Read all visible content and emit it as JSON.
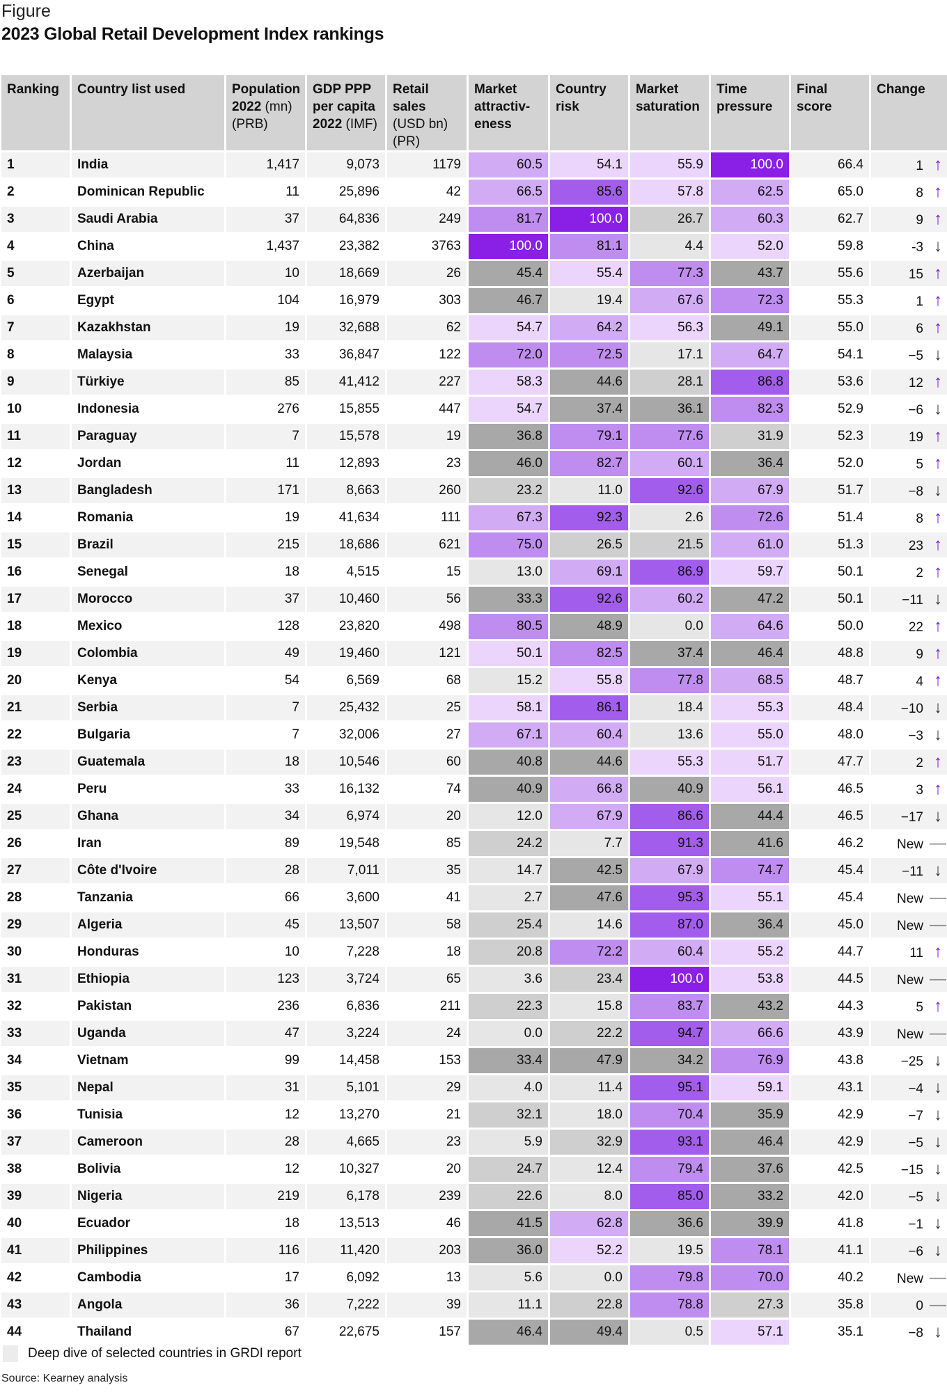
{
  "figure_label": "Figure",
  "title": "2023 Global Retail Development Index rankings",
  "headers": {
    "ranking": "Ranking",
    "country": "Country list used",
    "pop_b": "Population 2022",
    "pop_n": " (mn) (PRB)",
    "gdp_b": "GDP PPP per capita 2022",
    "gdp_n": " (IMF)",
    "retail_b": "Retail sales",
    "retail_n": " (USD bn) (PR)",
    "ma": "Market attractiv-eness",
    "cr": "Country risk",
    "ms": "Market saturation",
    "tp": "Time pressure",
    "final": "Final score",
    "change": "Change"
  },
  "colors": {
    "accent": "#7e14df"
  },
  "rows": [
    [
      "1",
      "India",
      "1,417",
      "9,073",
      "1179",
      "60.5",
      "54.1",
      "55.9",
      "100.0",
      "66.4",
      "1",
      "up"
    ],
    [
      "2",
      "Dominican Republic",
      "11",
      "25,896",
      "42",
      "66.5",
      "85.6",
      "57.8",
      "62.5",
      "65.0",
      "8",
      "up"
    ],
    [
      "3",
      "Saudi Arabia",
      "37",
      "64,836",
      "249",
      "81.7",
      "100.0",
      "26.7",
      "60.3",
      "62.7",
      "9",
      "up"
    ],
    [
      "4",
      "China",
      "1,437",
      "23,382",
      "3763",
      "100.0",
      "81.1",
      "4.4",
      "52.0",
      "59.8",
      "-3",
      "down"
    ],
    [
      "5",
      "Azerbaijan",
      "10",
      "18,669",
      "26",
      "45.4",
      "55.4",
      "77.3",
      "43.7",
      "55.6",
      "15",
      "up"
    ],
    [
      "6",
      "Egypt",
      "104",
      "16,979",
      "303",
      "46.7",
      "19.4",
      "67.6",
      "72.3",
      "55.3",
      "1",
      "up"
    ],
    [
      "7",
      "Kazakhstan",
      "19",
      "32,688",
      "62",
      "54.7",
      "64.2",
      "56.3",
      "49.1",
      "55.0",
      "6",
      "up"
    ],
    [
      "8",
      "Malaysia",
      "33",
      "36,847",
      "122",
      "72.0",
      "72.5",
      "17.1",
      "64.7",
      "54.1",
      "−5",
      "down"
    ],
    [
      "9",
      "Türkiye",
      "85",
      "41,412",
      "227",
      "58.3",
      "44.6",
      "28.1",
      "86.8",
      "53.6",
      "12",
      "up"
    ],
    [
      "10",
      "Indonesia",
      "276",
      "15,855",
      "447",
      "54.7",
      "37.4",
      "36.1",
      "82.3",
      "52.9",
      "−6",
      "down"
    ],
    [
      "11",
      "Paraguay",
      "7",
      "15,578",
      "19",
      "36.8",
      "79.1",
      "77.6",
      "31.9",
      "52.3",
      "19",
      "up"
    ],
    [
      "12",
      "Jordan",
      "11",
      "12,893",
      "23",
      "46.0",
      "82.7",
      "60.1",
      "36.4",
      "52.0",
      "5",
      "up"
    ],
    [
      "13",
      "Bangladesh",
      "171",
      "8,663",
      "260",
      "23.2",
      "11.0",
      "92.6",
      "67.9",
      "51.7",
      "−8",
      "down"
    ],
    [
      "14",
      "Romania",
      "19",
      "41,634",
      "111",
      "67.3",
      "92.3",
      "2.6",
      "72.6",
      "51.4",
      "8",
      "up"
    ],
    [
      "15",
      "Brazil",
      "215",
      "18,686",
      "621",
      "75.0",
      "26.5",
      "21.5",
      "61.0",
      "51.3",
      "23",
      "up"
    ],
    [
      "16",
      "Senegal",
      "18",
      "4,515",
      "15",
      "13.0",
      "69.1",
      "86.9",
      "59.7",
      "50.1",
      "2",
      "up"
    ],
    [
      "17",
      "Morocco",
      "37",
      "10,460",
      "56",
      "33.3",
      "92.6",
      "60.2",
      "47.2",
      "50.1",
      "−11",
      "down"
    ],
    [
      "18",
      "Mexico",
      "128",
      "23,820",
      "498",
      "80.5",
      "48.9",
      "0.0",
      "64.6",
      "50.0",
      "22",
      "up"
    ],
    [
      "19",
      "Colombia",
      "49",
      "19,460",
      "121",
      "50.1",
      "82.5",
      "37.4",
      "46.4",
      "48.8",
      "9",
      "up"
    ],
    [
      "20",
      "Kenya",
      "54",
      "6,569",
      "68",
      "15.2",
      "55.8",
      "77.8",
      "68.5",
      "48.7",
      "4",
      "up"
    ],
    [
      "21",
      "Serbia",
      "7",
      "25,432",
      "25",
      "58.1",
      "86.1",
      "18.4",
      "55.3",
      "48.4",
      "−10",
      "down"
    ],
    [
      "22",
      "Bulgaria",
      "7",
      "32,006",
      "27",
      "67.1",
      "60.4",
      "13.6",
      "55.0",
      "48.0",
      "−3",
      "down"
    ],
    [
      "23",
      "Guatemala",
      "18",
      "10,546",
      "60",
      "40.8",
      "44.6",
      "55.3",
      "51.7",
      "47.7",
      "2",
      "up"
    ],
    [
      "24",
      "Peru",
      "33",
      "16,132",
      "74",
      "40.9",
      "66.8",
      "40.9",
      "56.1",
      "46.5",
      "3",
      "up"
    ],
    [
      "25",
      "Ghana",
      "34",
      "6,974",
      "20",
      "12.0",
      "67.9",
      "86.6",
      "44.4",
      "46.5",
      "−17",
      "down"
    ],
    [
      "26",
      "Iran",
      "89",
      "19,548",
      "85",
      "24.2",
      "7.7",
      "91.3",
      "41.6",
      "46.2",
      "New",
      "flat"
    ],
    [
      "27",
      "Côte d'Ivoire",
      "28",
      "7,011",
      "35",
      "14.7",
      "42.5",
      "67.9",
      "74.7",
      "45.4",
      "−11",
      "down"
    ],
    [
      "28",
      "Tanzania",
      "66",
      "3,600",
      "41",
      "2.7",
      "47.6",
      "95.3",
      "55.1",
      "45.4",
      "New",
      "flat"
    ],
    [
      "29",
      "Algeria",
      "45",
      "13,507",
      "58",
      "25.4",
      "14.6",
      "87.0",
      "36.4",
      "45.0",
      "New",
      "flat"
    ],
    [
      "30",
      "Honduras",
      "10",
      "7,228",
      "18",
      "20.8",
      "72.2",
      "60.4",
      "55.2",
      "44.7",
      "11",
      "up"
    ],
    [
      "31",
      "Ethiopia",
      "123",
      "3,724",
      "65",
      "3.6",
      "23.4",
      "100.0",
      "53.8",
      "44.5",
      "New",
      "flat"
    ],
    [
      "32",
      "Pakistan",
      "236",
      "6,836",
      "211",
      "22.3",
      "15.8",
      "83.7",
      "43.2",
      "44.3",
      "5",
      "up"
    ],
    [
      "33",
      "Uganda",
      "47",
      "3,224",
      "24",
      "0.0",
      "22.2",
      "94.7",
      "66.6",
      "43.9",
      "New",
      "flat"
    ],
    [
      "34",
      "Vietnam",
      "99",
      "14,458",
      "153",
      "33.4",
      "47.9",
      "34.2",
      "76.9",
      "43.8",
      "−25",
      "down"
    ],
    [
      "35",
      "Nepal",
      "31",
      "5,101",
      "29",
      "4.0",
      "11.4",
      "95.1",
      "59.1",
      "43.1",
      "−4",
      "down"
    ],
    [
      "36",
      "Tunisia",
      "12",
      "13,270",
      "21",
      "32.1",
      "18.0",
      "70.4",
      "35.9",
      "42.9",
      "−7",
      "down"
    ],
    [
      "37",
      "Cameroon",
      "28",
      "4,665",
      "23",
      "5.9",
      "32.9",
      "93.1",
      "46.4",
      "42.9",
      "−5",
      "down"
    ],
    [
      "38",
      "Bolivia",
      "12",
      "10,327",
      "20",
      "24.7",
      "12.4",
      "79.4",
      "37.6",
      "42.5",
      "−15",
      "down"
    ],
    [
      "39",
      "Nigeria",
      "219",
      "6,178",
      "239",
      "22.6",
      "8.0",
      "85.0",
      "33.2",
      "42.0",
      "−5",
      "down"
    ],
    [
      "40",
      "Ecuador",
      "18",
      "13,513",
      "46",
      "41.5",
      "62.8",
      "36.6",
      "39.9",
      "41.8",
      "−1",
      "down"
    ],
    [
      "41",
      "Philippines",
      "116",
      "11,420",
      "203",
      "36.0",
      "52.2",
      "19.5",
      "78.1",
      "41.1",
      "−6",
      "down"
    ],
    [
      "42",
      "Cambodia",
      "17",
      "6,092",
      "13",
      "5.6",
      "0.0",
      "79.8",
      "70.0",
      "40.2",
      "New",
      "flat"
    ],
    [
      "43",
      "Angola",
      "36",
      "7,222",
      "39",
      "11.1",
      "22.8",
      "78.8",
      "27.3",
      "35.8",
      "0",
      "flat"
    ],
    [
      "44",
      "Thailand",
      "67",
      "22,675",
      "157",
      "46.4",
      "49.4",
      "0.5",
      "57.1",
      "35.1",
      "−8",
      "down"
    ]
  ],
  "legend": "Deep dive of selected countries in GRDI report",
  "source": "Source: Kearney analysis"
}
